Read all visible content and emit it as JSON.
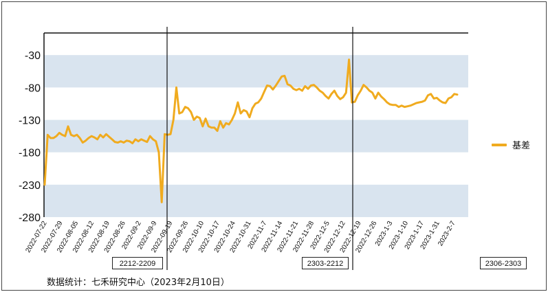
{
  "chart_data": {
    "type": "line",
    "title": "",
    "xlabel": "",
    "ylabel": "",
    "ylim": [
      -280,
      20
    ],
    "yticks": [
      -30,
      -80,
      -130,
      -180,
      -230,
      -280
    ],
    "x_tick_labels": [
      "2022-07-22",
      "2022-07-29",
      "2022-08-05",
      "2022-08-12",
      "2022-08-19",
      "2022-08-26",
      "2022-09-2",
      "2022-09-9",
      "2022-09-19",
      "2022-09-26",
      "2022-10-10",
      "2022-10-17",
      "2022-10-24",
      "2022-10-31",
      "2022-11-7",
      "2022-11-14",
      "2022-11-21",
      "2022-11-28",
      "2022-12-5",
      "2022-12-12",
      "2022-12-19",
      "2022-12-26",
      "2023-1-3",
      "2023-1-10",
      "2023-1-17",
      "2023-1-31",
      "2023-2-7"
    ],
    "legend_position": "right",
    "grid": "alternating horizontal bands",
    "series": [
      {
        "name": "基差",
        "color": "#f0ab1f",
        "values": [
          -230,
          -153,
          -158,
          -158,
          -155,
          -150,
          -153,
          -155,
          -140,
          -153,
          -155,
          -153,
          -158,
          -165,
          -162,
          -158,
          -155,
          -157,
          -160,
          -153,
          -157,
          -152,
          -156,
          -160,
          -164,
          -165,
          -163,
          -165,
          -162,
          -163,
          -166,
          -160,
          -163,
          -160,
          -162,
          -164,
          -155,
          -160,
          -163,
          -180,
          -257,
          -152,
          -153,
          -152,
          -130,
          -80,
          -120,
          -118,
          -110,
          -112,
          -118,
          -130,
          -125,
          -127,
          -140,
          -128,
          -140,
          -142,
          -142,
          -147,
          -132,
          -142,
          -135,
          -137,
          -130,
          -120,
          -103,
          -120,
          -115,
          -117,
          -126,
          -112,
          -105,
          -103,
          -97,
          -87,
          -77,
          -78,
          -83,
          -77,
          -70,
          -63,
          -62,
          -75,
          -77,
          -82,
          -84,
          -82,
          -85,
          -78,
          -82,
          -77,
          -76,
          -80,
          -85,
          -88,
          -93,
          -97,
          -90,
          -85,
          -93,
          -98,
          -95,
          -88,
          -37,
          -103,
          -102,
          -92,
          -85,
          -76,
          -80,
          -85,
          -88,
          -97,
          -88,
          -94,
          -98,
          -103,
          -106,
          -107,
          -107,
          -110,
          -108,
          -110,
          -109,
          -108,
          -106,
          -104,
          -103,
          -102,
          -100,
          -92,
          -90,
          -97,
          -96,
          -100,
          -103,
          -104,
          -97,
          -95,
          -90,
          -91
        ]
      }
    ]
  },
  "boxes": [
    "2212-2209",
    "2303-2212",
    "2306-2303"
  ],
  "footnote": "数据统计：七禾研究中心（2023年2月10日）",
  "colors": {
    "line": "#f0ab1f",
    "band": "#d9e4ef",
    "axis": "#111111"
  }
}
